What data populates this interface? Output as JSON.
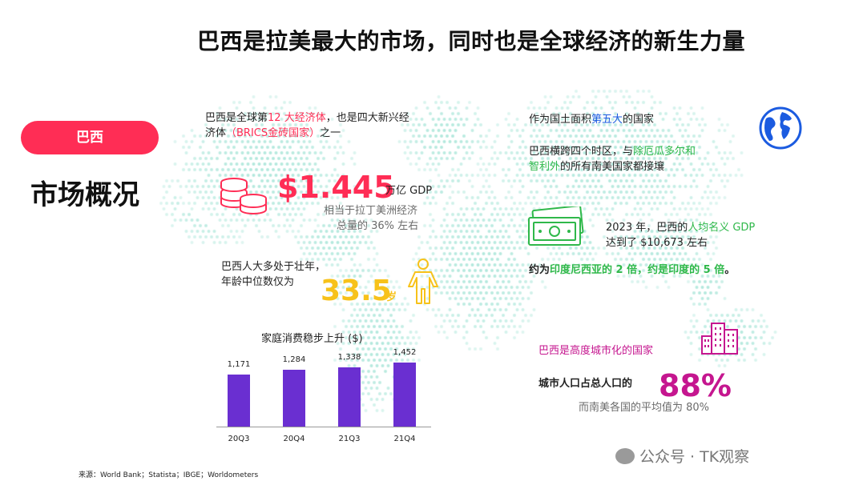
{
  "title": "巴西是拉美最大的市场，同时也是全球经济的新生力量",
  "pill": "巴西",
  "subheading": "市场概况",
  "economy": {
    "line1_pre": "巴西是全球第",
    "line1_hl": "12 大经济体",
    "line1_post": "，也是四大新兴经",
    "line2_pre": "济体",
    "line2_hl": "（BRICS金砖国家）",
    "line2_post": "之一"
  },
  "gdp": {
    "value": "$1.445",
    "unit": "万亿 GDP",
    "note1": "相当于拉丁美洲经济",
    "note2": "总量的 36% 左右"
  },
  "age": {
    "line1": "巴西人大多处于壮年，",
    "line2": "年龄中位数仅为",
    "value": "33.5",
    "unit": "岁"
  },
  "area": {
    "pre": "作为国土面积",
    "hl": "第五大",
    "post": "的国家"
  },
  "timezone": {
    "line1_pre": "巴西横跨四个时区，与",
    "line1_hl": "除厄瓜多尔和",
    "line2_hl": "智利外",
    "line2_post": "的所有南美国家都接壤"
  },
  "income": {
    "line1_pre": "2023 年，巴西的",
    "line1_hl": "人均名义 GDP",
    "line2": "达到了 $10,673 左右",
    "line3_pre": "约为",
    "line3_hl": "印度尼西亚的 2 倍，约是印度的 5 倍",
    "line3_post": "。"
  },
  "urban": {
    "heading": "巴西是高度城市化的国家",
    "label": "城市人口占总人口的",
    "value": "88%",
    "note": "而南美各国的平均值为 80%"
  },
  "chart_title": "家庭消费稳步上升 ($)",
  "chart_data": {
    "type": "bar",
    "title": "家庭消费稳步上升 ($)",
    "categories": [
      "20Q3",
      "20Q4",
      "21Q3",
      "21Q4"
    ],
    "values": [
      1171,
      1284,
      1338,
      1452
    ],
    "value_labels": [
      "1,171",
      "1,284",
      "1,338",
      "1,452"
    ],
    "ylim": [
      0,
      1500
    ],
    "grid": false,
    "color": "#6a2fd1"
  },
  "source": "来源：World Bank；Statista；IBGE；Worldometers",
  "watermark": "公众号 · TK观察",
  "colors": {
    "accent_red": "#ff2d55",
    "accent_green": "#2fb84a",
    "accent_yellow": "#f7c21a",
    "accent_magenta": "#c5168f",
    "bar": "#6a2fd1",
    "map_dots": "#7fd9c6"
  },
  "icons": [
    "coins-icon",
    "person-icon",
    "globe-icon",
    "banknote-icon",
    "buildings-icon"
  ]
}
